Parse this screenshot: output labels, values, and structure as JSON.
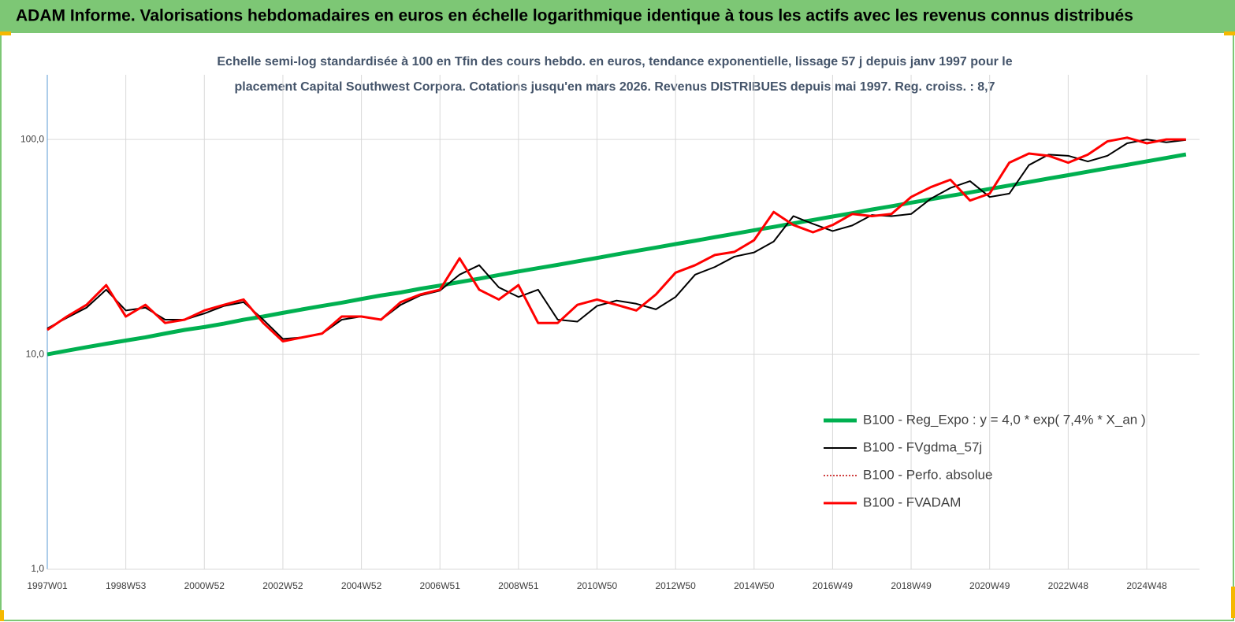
{
  "header": "ADAM Informe. Valorisations hebdomadaires en euros en échelle logarithmique identique à tous les actifs avec les revenus connus distribués",
  "chart_data": {
    "type": "line",
    "title": [
      "Echelle semi-log standardisée à 100 en Tfin des cours hebdo. en euros, tendance exponentielle, lissage 57 j depuis janv 1997 pour le",
      "placement Capital Southwest Corpora. Cotations jusqu'en mars 2026. Revenus DISTRIBUES depuis mai 1997. Reg. croiss. : 8,7"
    ],
    "categories": [
      "1997W01",
      null,
      null,
      null,
      "1998W53",
      null,
      null,
      null,
      "2000W52",
      null,
      null,
      null,
      "2002W52",
      null,
      null,
      null,
      "2004W52",
      null,
      null,
      null,
      "2006W51",
      null,
      null,
      null,
      "2008W51",
      null,
      null,
      null,
      "2010W50",
      null,
      null,
      null,
      "2012W50",
      null,
      null,
      null,
      "2014W50",
      null,
      null,
      null,
      "2016W49",
      null,
      null,
      null,
      "2018W49",
      null,
      null,
      null,
      "2020W49",
      null,
      null,
      null,
      "2022W48",
      null,
      null,
      null,
      "2024W48",
      null,
      null
    ],
    "log_scale": true,
    "ylim": [
      1,
      200
    ],
    "yticks": [
      {
        "value": 1,
        "label": "1,0"
      },
      {
        "value": 10,
        "label": "10,0"
      },
      {
        "value": 100,
        "label": "100,0"
      }
    ],
    "grid": true,
    "legend": "right",
    "series": [
      {
        "name": "B100 - Reg_Expo : y = 4,0 * exp( 7,4% *  X_an )",
        "color": "#00b050",
        "width": 5,
        "values": [
          10,
          10.4,
          10.8,
          11.2,
          11.6,
          12.0,
          12.5,
          13.0,
          13.4,
          13.9,
          14.5,
          15.0,
          15.6,
          16.2,
          16.8,
          17.4,
          18.1,
          18.8,
          19.4,
          20.2,
          20.9,
          21.7,
          22.5,
          23.4,
          24.3,
          25.2,
          26.1,
          27.1,
          28.1,
          29.2,
          30.3,
          31.4,
          32.6,
          33.8,
          35.1,
          36.4,
          37.8,
          39.2,
          40.7,
          42.2,
          43.8,
          45.4,
          47.2,
          48.9,
          50.8,
          52.7,
          54.7,
          56.7,
          58.9,
          61.1,
          63.4,
          65.8,
          68.2,
          70.8,
          73.5,
          76.2,
          79.1,
          82.1,
          85.2
        ]
      },
      {
        "name": "B100 - FVgdma_57j",
        "color": "#000000",
        "width": 2,
        "values": [
          13.2,
          14.8,
          16.5,
          20,
          16,
          16.5,
          14.5,
          14.5,
          15.5,
          16.8,
          17.5,
          14.5,
          11.8,
          12,
          12.5,
          14.5,
          15,
          14.5,
          17,
          18.8,
          19.8,
          23.5,
          26,
          20.5,
          18.5,
          20,
          14.5,
          14.2,
          16.8,
          17.8,
          17.2,
          16.2,
          18.5,
          23.5,
          25.5,
          28.5,
          29.8,
          33.5,
          44,
          40.5,
          37.5,
          39.8,
          44.5,
          44,
          45,
          53,
          59.5,
          64,
          54,
          56,
          76,
          85,
          84,
          79,
          84,
          96,
          100,
          97,
          99.5
        ]
      },
      {
        "name": "B100 - Perfo. absolue",
        "color": "#c00000",
        "width": 1.5,
        "dash": true,
        "values": [
          13,
          15,
          17,
          21,
          15,
          17,
          14,
          14.5,
          16,
          17,
          18,
          14,
          11.5,
          12,
          12.5,
          15,
          15,
          14.5,
          17.5,
          19,
          20,
          28,
          20,
          18,
          21,
          14,
          14,
          17,
          18,
          17,
          16,
          19,
          24,
          26,
          29,
          30,
          34,
          46,
          40,
          37,
          40,
          45,
          44,
          45,
          54,
          60,
          65,
          52,
          56,
          78,
          86,
          84,
          78,
          85,
          98,
          102,
          96,
          100,
          100
        ]
      },
      {
        "name": "B100 - FVADAM",
        "color": "#ff0000",
        "width": 3,
        "values": [
          13,
          15,
          17,
          21,
          15,
          17,
          14,
          14.5,
          16,
          17,
          18,
          14,
          11.5,
          12,
          12.5,
          15,
          15,
          14.5,
          17.5,
          19,
          20,
          28,
          20,
          18,
          21,
          14,
          14,
          17,
          18,
          17,
          16,
          19,
          24,
          26,
          29,
          30,
          34,
          46,
          40,
          37,
          40,
          45,
          44,
          45,
          54,
          60,
          65,
          52,
          56,
          78,
          86,
          84,
          78,
          85,
          98,
          102,
          96,
          100,
          100
        ]
      }
    ]
  }
}
